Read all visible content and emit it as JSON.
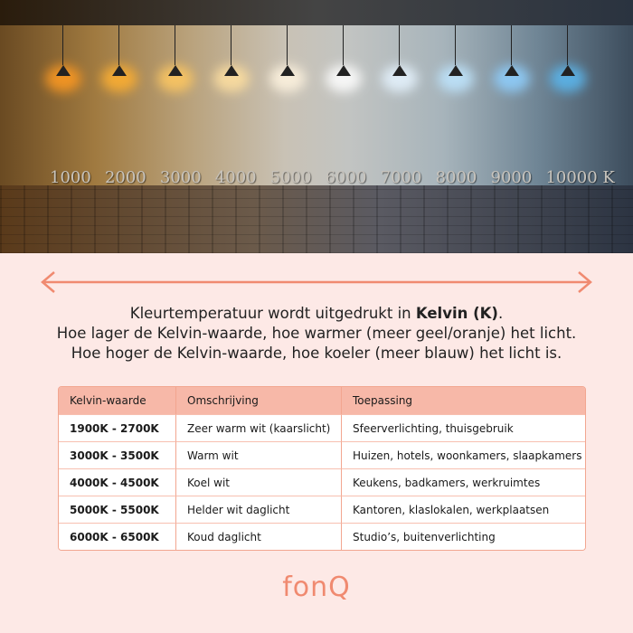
{
  "photo": {
    "scale_labels": [
      "1000",
      "2000",
      "3000",
      "4000",
      "5000",
      "6000",
      "7000",
      "8000",
      "9000",
      "10000 K"
    ],
    "lamp_colors": [
      "#ff9a20",
      "#ffb030",
      "#ffc860",
      "#ffe0a0",
      "#fff4e0",
      "#ffffff",
      "#e6f4ff",
      "#bfe6ff",
      "#8fd0ff",
      "#5ab8f0"
    ]
  },
  "intro": {
    "line1_prefix": "Kleurtemperatuur wordt uitgedrukt in ",
    "line1_bold": "Kelvin (K)",
    "line1_suffix": ".",
    "line2": "Hoe lager de Kelvin-waarde, hoe warmer (meer geel/oranje) het licht.",
    "line3": "Hoe hoger de Kelvin-waarde, hoe koeler (meer blauw) het licht is."
  },
  "table": {
    "headers": [
      "Kelvin-waarde",
      "Omschrijving",
      "Toepassing"
    ],
    "rows": [
      [
        "1900K - 2700K",
        "Zeer warm wit (kaarslicht)",
        "Sfeerverlichting, thuisgebruik"
      ],
      [
        "3000K - 3500K",
        "Warm wit",
        "Huizen, hotels, woonkamers, slaapkamers"
      ],
      [
        "4000K - 4500K",
        "Koel wit",
        "Keukens, badkamers, werkruimtes"
      ],
      [
        "5000K - 5500K",
        "Helder wit daglicht",
        "Kantoren, klaslokalen, werkplaatsen"
      ],
      [
        "6000K - 6500K",
        "Koud daglicht",
        "Studio’s, buitenverlichting"
      ]
    ]
  },
  "logo": "fonQ",
  "colors": {
    "accent": "#f08a70",
    "background": "#fde9e6",
    "header": "#f7b8a8"
  }
}
